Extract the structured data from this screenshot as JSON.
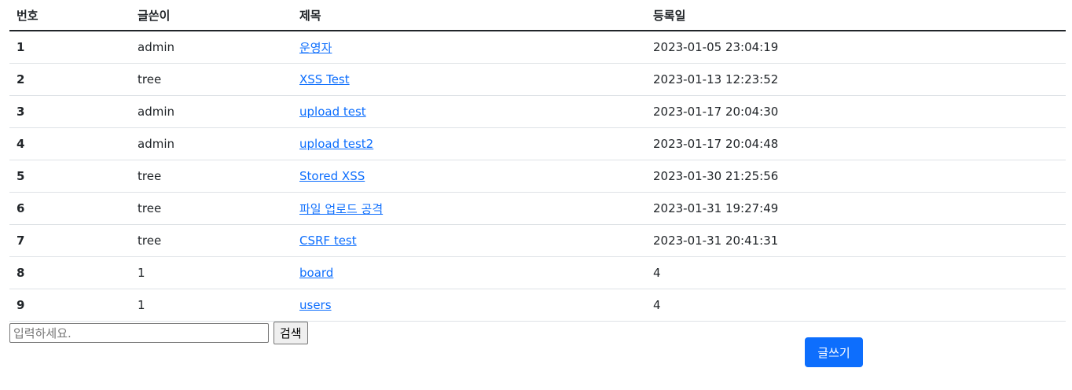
{
  "table": {
    "headers": [
      "번호",
      "글쓴이",
      "제목",
      "등록일"
    ],
    "rows": [
      {
        "num": "1",
        "author": "admin",
        "title": "운영자",
        "date": "2023-01-05 23:04:19"
      },
      {
        "num": "2",
        "author": "tree",
        "title": "XSS Test",
        "date": "2023-01-13 12:23:52"
      },
      {
        "num": "3",
        "author": "admin",
        "title": "upload test",
        "date": "2023-01-17 20:04:30"
      },
      {
        "num": "4",
        "author": "admin",
        "title": "upload test2",
        "date": "2023-01-17 20:04:48"
      },
      {
        "num": "5",
        "author": "tree",
        "title": "Stored XSS",
        "date": "2023-01-30 21:25:56"
      },
      {
        "num": "6",
        "author": "tree",
        "title": "파일 업로드 공격",
        "date": "2023-01-31 19:27:49"
      },
      {
        "num": "7",
        "author": "tree",
        "title": "CSRF test",
        "date": "2023-01-31 20:41:31"
      },
      {
        "num": "8",
        "author": "1",
        "title": "board",
        "date": "4"
      },
      {
        "num": "9",
        "author": "1",
        "title": "users",
        "date": "4"
      }
    ]
  },
  "search": {
    "placeholder": "입력하세요.",
    "value": "",
    "button_label": "검색"
  },
  "write_button_label": "글쓰기"
}
